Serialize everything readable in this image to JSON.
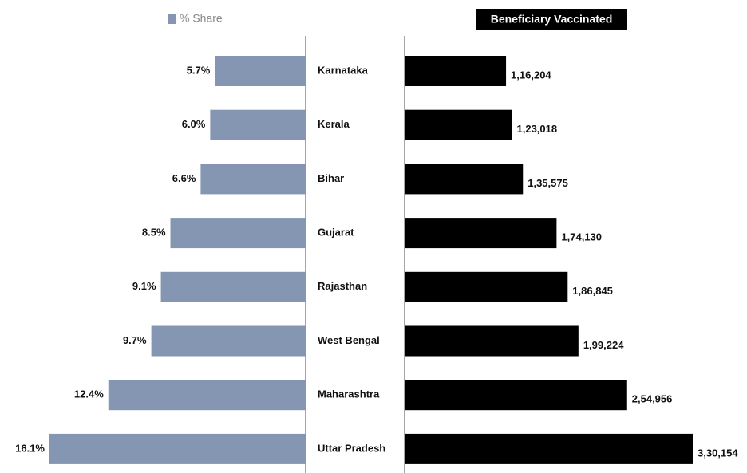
{
  "chart_data": {
    "type": "bar",
    "orientation": "horizontal",
    "categories": [
      "Karnataka",
      "Kerala",
      "Bihar",
      "Gujarat",
      "Rajasthan",
      "West Bengal",
      "Maharashtra",
      "Uttar Pradesh"
    ],
    "series": [
      {
        "name": "% Share",
        "color": "#8496b2",
        "direction": "left",
        "values": [
          5.7,
          6.0,
          6.6,
          8.5,
          9.1,
          9.7,
          12.4,
          16.1
        ],
        "value_labels": [
          "5.7%",
          "6.0%",
          "6.6%",
          "8.5%",
          "9.1%",
          "9.7%",
          "12.4%",
          "16.1%"
        ]
      },
      {
        "name": "Beneficiary Vaccinated",
        "color": "#000000",
        "direction": "right",
        "values": [
          116204,
          123018,
          135575,
          174130,
          186845,
          199224,
          254956,
          330154
        ],
        "value_labels": [
          "1,16,204",
          "1,23,018",
          "1,35,575",
          "1,74,130",
          "1,86,845",
          "1,99,224",
          "2,54,956",
          "3,30,154"
        ]
      }
    ]
  }
}
